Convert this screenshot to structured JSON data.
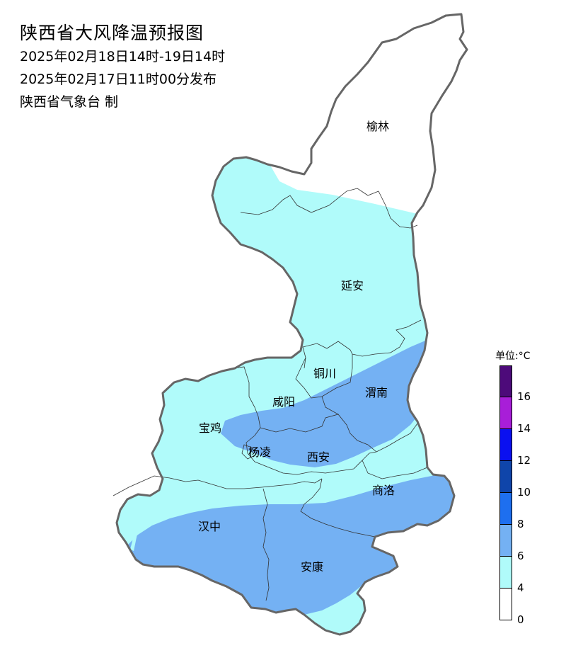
{
  "title": "陕西省大风降温预报图",
  "subtitle_period": "2025年02月18日14时-19日14时",
  "subtitle_issued": "2025年02月17日11时00分发布",
  "subtitle_producer": "陕西省气象台 制",
  "cities": {
    "yulin": "榆林",
    "yanan": "延安",
    "tongchuan": "铜川",
    "weinan": "渭南",
    "xianyang": "咸阳",
    "baoji": "宝鸡",
    "yangling": "杨凌",
    "xian": "西安",
    "shangluo": "商洛",
    "hanzhong": "汉中",
    "ankang": "安康"
  },
  "legend": {
    "unit": "单位:°C",
    "classes": [
      {
        "range": "16+",
        "color": "#4d0a7a"
      },
      {
        "range": "14-16",
        "color": "#a81ed8"
      },
      {
        "range": "12-14",
        "color": "#0a10f0"
      },
      {
        "range": "10-12",
        "color": "#0f45aa"
      },
      {
        "range": "8-10",
        "color": "#1e6fef"
      },
      {
        "range": "6-8",
        "color": "#74b1f3"
      },
      {
        "range": "4-6",
        "color": "#b0fbfa"
      },
      {
        "range": "0-4",
        "color": "#ffffff"
      }
    ],
    "ticks": [
      "16",
      "14",
      "12",
      "10",
      "8",
      "6",
      "4",
      "0"
    ]
  },
  "colors": {
    "zone_4_6": "#b0fbfa",
    "zone_6_8": "#74b1f3",
    "zone_0_4": "#ffffff",
    "province_border": "#666666",
    "city_border": "#333333"
  }
}
